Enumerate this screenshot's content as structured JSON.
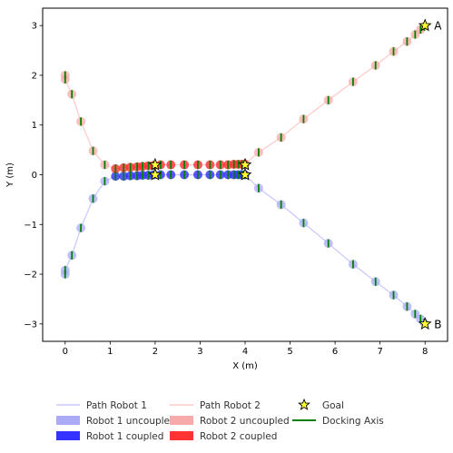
{
  "chart_data": {
    "type": "scatter",
    "xlabel": "X (m)",
    "ylabel": "Y (m)",
    "xlim": [
      -0.5,
      8.5
    ],
    "ylim": [
      -3.35,
      3.35
    ],
    "xticks": [
      0,
      1,
      2,
      3,
      4,
      5,
      6,
      7,
      8
    ],
    "yticks": [
      -3,
      -2,
      -1,
      0,
      1,
      2,
      3
    ],
    "grid": false,
    "legend_position": "bottom",
    "colors": {
      "path_robot_1": "#c8c8ff",
      "path_robot_2": "#ffc8c8",
      "robot_1_uncoupled": "#aaaaf8",
      "robot_2_uncoupled": "#f8aaaa",
      "robot_1_coupled": "#3333ff",
      "robot_2_coupled": "#ff3333",
      "goal": "#ffff33",
      "docking_axis": "#008000"
    },
    "series": [
      {
        "name": "Robot 1 uncoupled",
        "x": [
          0.0,
          0.0,
          0.15,
          0.35,
          0.62,
          0.88,
          4.0,
          4.3,
          4.8,
          5.3,
          5.85,
          6.4,
          6.9,
          7.3,
          7.6,
          7.78,
          7.9,
          7.98
        ],
        "y": [
          -2.0,
          -1.92,
          -1.62,
          -1.07,
          -0.48,
          -0.13,
          0.0,
          -0.27,
          -0.6,
          -0.97,
          -1.38,
          -1.8,
          -2.15,
          -2.42,
          -2.65,
          -2.8,
          -2.9,
          -2.98
        ]
      },
      {
        "name": "Robot 2 uncoupled",
        "x": [
          0.0,
          0.0,
          0.15,
          0.35,
          0.62,
          0.88,
          4.0,
          4.3,
          4.8,
          5.3,
          5.85,
          6.4,
          6.9,
          7.3,
          7.6,
          7.78,
          7.9,
          7.98
        ],
        "y": [
          2.0,
          1.92,
          1.62,
          1.07,
          0.48,
          0.2,
          0.22,
          0.45,
          0.75,
          1.12,
          1.5,
          1.87,
          2.2,
          2.48,
          2.68,
          2.82,
          2.92,
          2.98
        ]
      },
      {
        "name": "Robot 1 coupled",
        "x": [
          1.12,
          1.3,
          1.45,
          1.6,
          1.72,
          1.85,
          1.97,
          2.12,
          2.35,
          2.65,
          2.95,
          3.22,
          3.45,
          3.62,
          3.75,
          3.85,
          3.93,
          3.99
        ],
        "y": [
          -0.03,
          -0.03,
          -0.02,
          -0.02,
          -0.01,
          -0.01,
          0.0,
          0.0,
          0.0,
          0.0,
          0.0,
          0.0,
          0.0,
          0.0,
          0.0,
          0.0,
          0.0,
          0.0
        ]
      },
      {
        "name": "Robot 2 coupled",
        "x": [
          1.12,
          1.3,
          1.45,
          1.6,
          1.72,
          1.85,
          1.97,
          2.12,
          2.35,
          2.65,
          2.95,
          3.22,
          3.45,
          3.62,
          3.75,
          3.85,
          3.93,
          3.99
        ],
        "y": [
          0.12,
          0.14,
          0.15,
          0.16,
          0.17,
          0.18,
          0.19,
          0.2,
          0.2,
          0.2,
          0.2,
          0.2,
          0.2,
          0.2,
          0.21,
          0.21,
          0.21,
          0.21
        ]
      }
    ],
    "goals": [
      {
        "x": 2.0,
        "y": 0.0
      },
      {
        "x": 2.0,
        "y": 0.2
      },
      {
        "x": 4.0,
        "y": 0.0
      },
      {
        "x": 4.0,
        "y": 0.2
      },
      {
        "x": 8.0,
        "y": 3.0
      },
      {
        "x": 8.0,
        "y": -3.0
      }
    ],
    "annotations": [
      {
        "text": "A",
        "x": 8.0,
        "y": 3.0
      },
      {
        "text": "B",
        "x": 8.0,
        "y": -3.0
      }
    ],
    "legend": [
      {
        "label": "Path Robot 1",
        "kind": "line",
        "color_key": "path_robot_1"
      },
      {
        "label": "Robot 1 uncoupled",
        "kind": "patch",
        "color_key": "robot_1_uncoupled"
      },
      {
        "label": "Robot 1 coupled",
        "kind": "patch",
        "color_key": "robot_1_coupled"
      },
      {
        "label": "Path Robot 2",
        "kind": "line",
        "color_key": "path_robot_2"
      },
      {
        "label": "Robot 2 uncoupled",
        "kind": "patch",
        "color_key": "robot_2_uncoupled"
      },
      {
        "label": "Robot 2 coupled",
        "kind": "patch",
        "color_key": "robot_2_coupled"
      },
      {
        "label": "Goal",
        "kind": "star",
        "color_key": "goal"
      },
      {
        "label": "Docking Axis",
        "kind": "line",
        "color_key": "docking_axis"
      }
    ]
  }
}
